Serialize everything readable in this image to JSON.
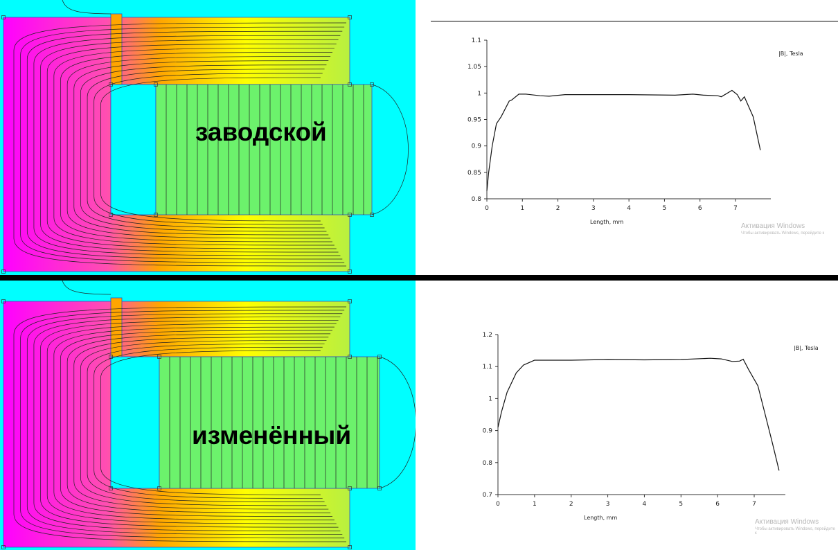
{
  "labels": {
    "top": "заводской",
    "bottom": "изменённый"
  },
  "watermark": {
    "title": "Активация Windows",
    "subtitle": "Чтобы активировать Windows, перейдите к"
  },
  "colors": {
    "field_high": "#ff00ff",
    "field_mid": "#ffa500",
    "field_low": "#ffff00",
    "field_green": "#6cf26c",
    "air": "#00ffff"
  },
  "chart_data": [
    {
      "type": "line",
      "title": "",
      "legend": "|B|, Tesla",
      "legend_position": "top-right",
      "xlabel": "Length, mm",
      "ylabel": "",
      "xlim": [
        0,
        7.7
      ],
      "ylim": [
        0.8,
        1.1
      ],
      "xticks": [
        "0",
        "1",
        "2",
        "3",
        "4",
        "5",
        "6",
        "7"
      ],
      "yticks": [
        "0.8",
        "0.85",
        "0.9",
        "0.95",
        "1",
        "1.05",
        "1.1"
      ],
      "grid": false,
      "x": [
        0,
        0.05,
        0.15,
        0.27,
        0.4,
        0.63,
        0.7,
        0.9,
        1.1,
        1.5,
        1.75,
        2.2,
        3,
        4,
        5.3,
        5.8,
        6.1,
        6.5,
        6.6,
        6.9,
        7.05,
        7.15,
        7.25,
        7.5,
        7.7
      ],
      "y": [
        0.815,
        0.85,
        0.9,
        0.942,
        0.955,
        0.985,
        0.987,
        0.998,
        0.998,
        0.995,
        0.994,
        0.997,
        0.997,
        0.997,
        0.996,
        0.998,
        0.996,
        0.995,
        0.993,
        1.005,
        0.997,
        0.985,
        0.993,
        0.955,
        0.892
      ]
    },
    {
      "type": "line",
      "title": "",
      "legend": "|B|, Tesla",
      "legend_position": "top-right",
      "xlabel": "Length, mm",
      "ylabel": "",
      "xlim": [
        0,
        7.7
      ],
      "ylim": [
        0.7,
        1.2
      ],
      "xticks": [
        "0",
        "1",
        "2",
        "3",
        "4",
        "5",
        "6",
        "7"
      ],
      "yticks": [
        "0.7",
        "0.8",
        "0.9",
        "1",
        "1.1",
        "1.2"
      ],
      "grid": false,
      "x": [
        0,
        0.1,
        0.25,
        0.5,
        0.7,
        1,
        2,
        3,
        4,
        5,
        5.8,
        6.1,
        6.4,
        6.6,
        6.7,
        6.85,
        7.0,
        7.1,
        7.3,
        7.5,
        7.68
      ],
      "y": [
        0.91,
        0.96,
        1.02,
        1.08,
        1.105,
        1.12,
        1.12,
        1.122,
        1.121,
        1.122,
        1.126,
        1.124,
        1.116,
        1.117,
        1.123,
        1.09,
        1.06,
        1.04,
        0.95,
        0.86,
        0.775
      ]
    }
  ]
}
